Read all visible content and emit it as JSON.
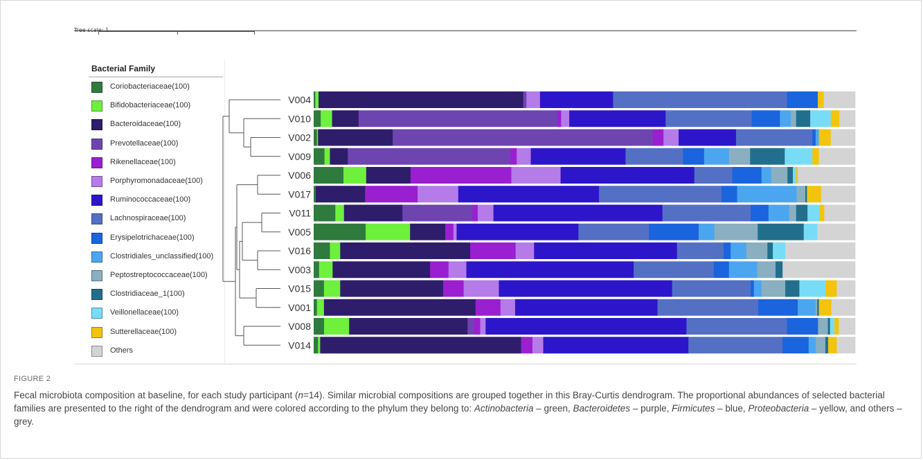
{
  "tree_scale": {
    "label": "Tree scale: 1"
  },
  "legend": {
    "title": "Bacterial Family",
    "items": [
      {
        "label": "Coriobacteriaceae(100)",
        "color": "#2f7a3d"
      },
      {
        "label": "Bifidobacteriaceae(100)",
        "color": "#6ef03d"
      },
      {
        "label": "Bacteroidaceae(100)",
        "color": "#2e1d6b"
      },
      {
        "label": "Prevotellaceae(100)",
        "color": "#6e45b0"
      },
      {
        "label": "Rikenellaceae(100)",
        "color": "#9a1fd0"
      },
      {
        "label": "Porphyromonadaceae(100)",
        "color": "#b57be8"
      },
      {
        "label": "Ruminococcaceae(100)",
        "color": "#2d16c9"
      },
      {
        "label": "Lachnospiraceae(100)",
        "color": "#5470c4"
      },
      {
        "label": "Erysipelotrichaceae(100)",
        "color": "#1a64de"
      },
      {
        "label": "Clostridiales_unclassified(100)",
        "color": "#4ca6ef"
      },
      {
        "label": "Peptostreptococcaceae(100)",
        "color": "#89afc0"
      },
      {
        "label": "Clostridiaceae_1(100)",
        "color": "#216f8c"
      },
      {
        "label": "Veillonellaceae(100)",
        "color": "#79dcf6"
      },
      {
        "label": "Sutterellaceae(100)",
        "color": "#f2c40d"
      },
      {
        "label": "Others",
        "color": "#d4d4d4"
      }
    ]
  },
  "chart_data": {
    "type": "bar",
    "orientation": "horizontal-stacked-100",
    "categories": [
      "V004",
      "V010",
      "V002",
      "V009",
      "V006",
      "V017",
      "V011",
      "V005",
      "V016",
      "V003",
      "V015",
      "V001",
      "V008",
      "V014"
    ],
    "series": [
      {
        "name": "Coriobacteriaceae(100)",
        "color": "#2f7a3d",
        "values": [
          0.3,
          1.3,
          0.6,
          2.0,
          5.5,
          0.4,
          4.0,
          9.6,
          3.0,
          1.0,
          1.9,
          0.6,
          1.9,
          0.8
        ]
      },
      {
        "name": "Bifidobacteriaceae(100)",
        "color": "#6ef03d",
        "values": [
          0.6,
          2.1,
          0.2,
          1.0,
          4.2,
          0.0,
          1.6,
          8.2,
          1.9,
          2.5,
          3.0,
          1.3,
          4.6,
          0.4
        ]
      },
      {
        "name": "Bacteroidaceae(100)",
        "color": "#2e1d6b",
        "values": [
          37.8,
          4.9,
          13.8,
          3.3,
          8.2,
          9.1,
          10.8,
          6.5,
          24.0,
          18.0,
          19.0,
          28.0,
          21.7,
          37.1
        ]
      },
      {
        "name": "Prevotellaceae(100)",
        "color": "#6e45b0",
        "values": [
          0.6,
          36.7,
          48.0,
          30.0,
          0.0,
          0.0,
          12.9,
          0.0,
          0.0,
          0.0,
          0.0,
          0.0,
          1.2,
          0.0
        ]
      },
      {
        "name": "Rikenellaceae(100)",
        "color": "#9a1fd0",
        "values": [
          0.0,
          0.7,
          2.0,
          1.2,
          18.6,
          9.7,
          1.0,
          1.5,
          8.4,
          3.4,
          3.8,
          4.6,
          1.1,
          2.1
        ]
      },
      {
        "name": "Porphyromonadaceae(100)",
        "color": "#b57be8",
        "values": [
          2.5,
          1.5,
          2.8,
          2.6,
          9.1,
          7.5,
          2.9,
          0.6,
          3.4,
          3.3,
          6.5,
          2.7,
          1.0,
          2.0
        ]
      },
      {
        "name": "Ruminococcaceae(100)",
        "color": "#2d16c9",
        "values": [
          13.5,
          17.8,
          10.6,
          17.5,
          24.7,
          26.0,
          31.2,
          22.5,
          26.4,
          30.9,
          32.0,
          26.3,
          36.8,
          26.8
        ]
      },
      {
        "name": "Lachnospiraceae(100)",
        "color": "#5470c4",
        "values": [
          32.1,
          15.9,
          14.1,
          10.6,
          7.0,
          22.6,
          16.3,
          13.0,
          8.6,
          14.8,
          14.5,
          18.6,
          18.4,
          17.4
        ]
      },
      {
        "name": "Erysipelotrichaceae(100)",
        "color": "#1a64de",
        "values": [
          5.7,
          5.2,
          0.6,
          3.9,
          5.4,
          2.9,
          3.3,
          9.2,
          1.3,
          2.8,
          0.6,
          7.3,
          5.7,
          4.8
        ]
      },
      {
        "name": "Clostridiales_unclassified(100)",
        "color": "#4ca6ef",
        "values": [
          0.0,
          2.0,
          0.6,
          4.6,
          1.8,
          11.0,
          3.8,
          2.9,
          2.9,
          5.2,
          1.4,
          3.3,
          0.0,
          1.3
        ]
      },
      {
        "name": "Peptostreptococcaceae(100)",
        "color": "#89afc0",
        "values": [
          0.0,
          1.0,
          0.0,
          3.9,
          3.0,
          1.6,
          1.3,
          8.0,
          3.9,
          3.4,
          4.4,
          0.3,
          1.8,
          1.8
        ]
      },
      {
        "name": "Clostridiaceae_1(100)",
        "color": "#216f8c",
        "values": [
          0.0,
          2.6,
          0.0,
          6.4,
          1.0,
          0.3,
          2.1,
          8.5,
          1.0,
          1.3,
          2.6,
          0.3,
          0.4,
          0.5
        ]
      },
      {
        "name": "Veillonellaceae(100)",
        "color": "#79dcf6",
        "values": [
          0.0,
          3.8,
          0.0,
          5.1,
          0.6,
          0.0,
          2.2,
          2.5,
          2.3,
          0.0,
          4.8,
          0.0,
          0.8,
          0.0
        ]
      },
      {
        "name": "Sutterellaceae(100)",
        "color": "#f2c40d",
        "values": [
          1.1,
          1.6,
          2.2,
          1.2,
          0.3,
          2.6,
          0.9,
          0.0,
          0.0,
          0.0,
          2.1,
          2.3,
          0.8,
          1.6
        ]
      },
      {
        "name": "Others",
        "color": "#d4d4d4",
        "values": [
          5.8,
          2.9,
          4.5,
          6.7,
          10.6,
          6.3,
          5.7,
          7.0,
          12.9,
          13.4,
          3.4,
          4.4,
          3.0,
          3.4
        ]
      }
    ],
    "xlim": [
      0,
      100
    ],
    "dendrogram": "Bray-Curtis"
  },
  "figure": {
    "label": "FIGURE 2",
    "caption_parts": [
      {
        "text": "Fecal microbiota composition at baseline, for each study participant (",
        "italic": false
      },
      {
        "text": "n",
        "italic": true
      },
      {
        "text": "=14). Similar microbial compositions are grouped together in this Bray-Curtis dendrogram. The proportional abundances of selected bacterial families are presented to the right of the dendrogram and were colored according to the phylum they belong to: ",
        "italic": false
      },
      {
        "text": "Actinobacteria",
        "italic": true
      },
      {
        "text": " – green, ",
        "italic": false
      },
      {
        "text": "Bacteroidetes",
        "italic": true
      },
      {
        "text": " – purple, ",
        "italic": false
      },
      {
        "text": "Firmicutes",
        "italic": true
      },
      {
        "text": " – blue, ",
        "italic": false
      },
      {
        "text": "Proteobacteria",
        "italic": true
      },
      {
        "text": " – yellow, and others – grey.",
        "italic": false
      }
    ]
  }
}
